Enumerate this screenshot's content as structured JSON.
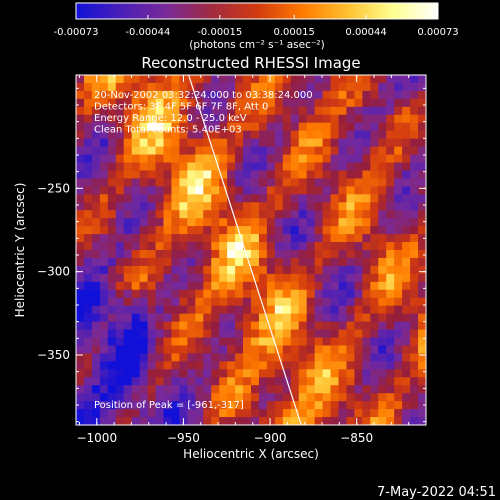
{
  "chart_data": {
    "type": "heatmap",
    "title": "Reconstructed RHESSI Image",
    "colorbar": {
      "ticks": [
        "-0.00073",
        "-0.00044",
        "-0.00015",
        "0.00015",
        "0.00044",
        "0.00073"
      ],
      "range": [
        -0.00073,
        0.00073
      ],
      "unit_label": "(photons cm⁻² s⁻¹ asec⁻²)",
      "colormap": [
        "#1010d8",
        "#4a1fb8",
        "#7a2a98",
        "#a02a40",
        "#d23a10",
        "#ff7a00",
        "#ffc030",
        "#ffff90",
        "#ffffff"
      ]
    },
    "xlabel": "Heliocentric X (arcsec)",
    "ylabel": "Heliocentric Y (arcsec)",
    "xlim": [
      -1012,
      -810
    ],
    "ylim": [
      -392,
      -182
    ],
    "xticks": [
      {
        "value": -1000,
        "label": "−1000"
      },
      {
        "value": -950,
        "label": "−950"
      },
      {
        "value": -900,
        "label": "−900"
      },
      {
        "value": -850,
        "label": "−850"
      }
    ],
    "yticks": [
      {
        "value": -250,
        "label": "−250"
      },
      {
        "value": -300,
        "label": "−300"
      },
      {
        "value": -350,
        "label": "−350"
      }
    ],
    "info_lines": [
      "20-Nov-2002 03:32:24.000 to 03:38:24.000",
      "Detectors: 3F 4F 5F 6F 7F 8F, Att 0",
      "Energy Range: 12.0 - 25.0 keV",
      "Clean     Total counts: 5.40E+03"
    ],
    "peak_label": "Position of Peak = [-961,-317]",
    "peak": [
      -961,
      -317
    ],
    "limb_line": {
      "x1": -947,
      "y1": -182,
      "x2": -882,
      "y2": -392
    },
    "grid": false
  },
  "footer_timestamp": "7-May-2022 04:51"
}
